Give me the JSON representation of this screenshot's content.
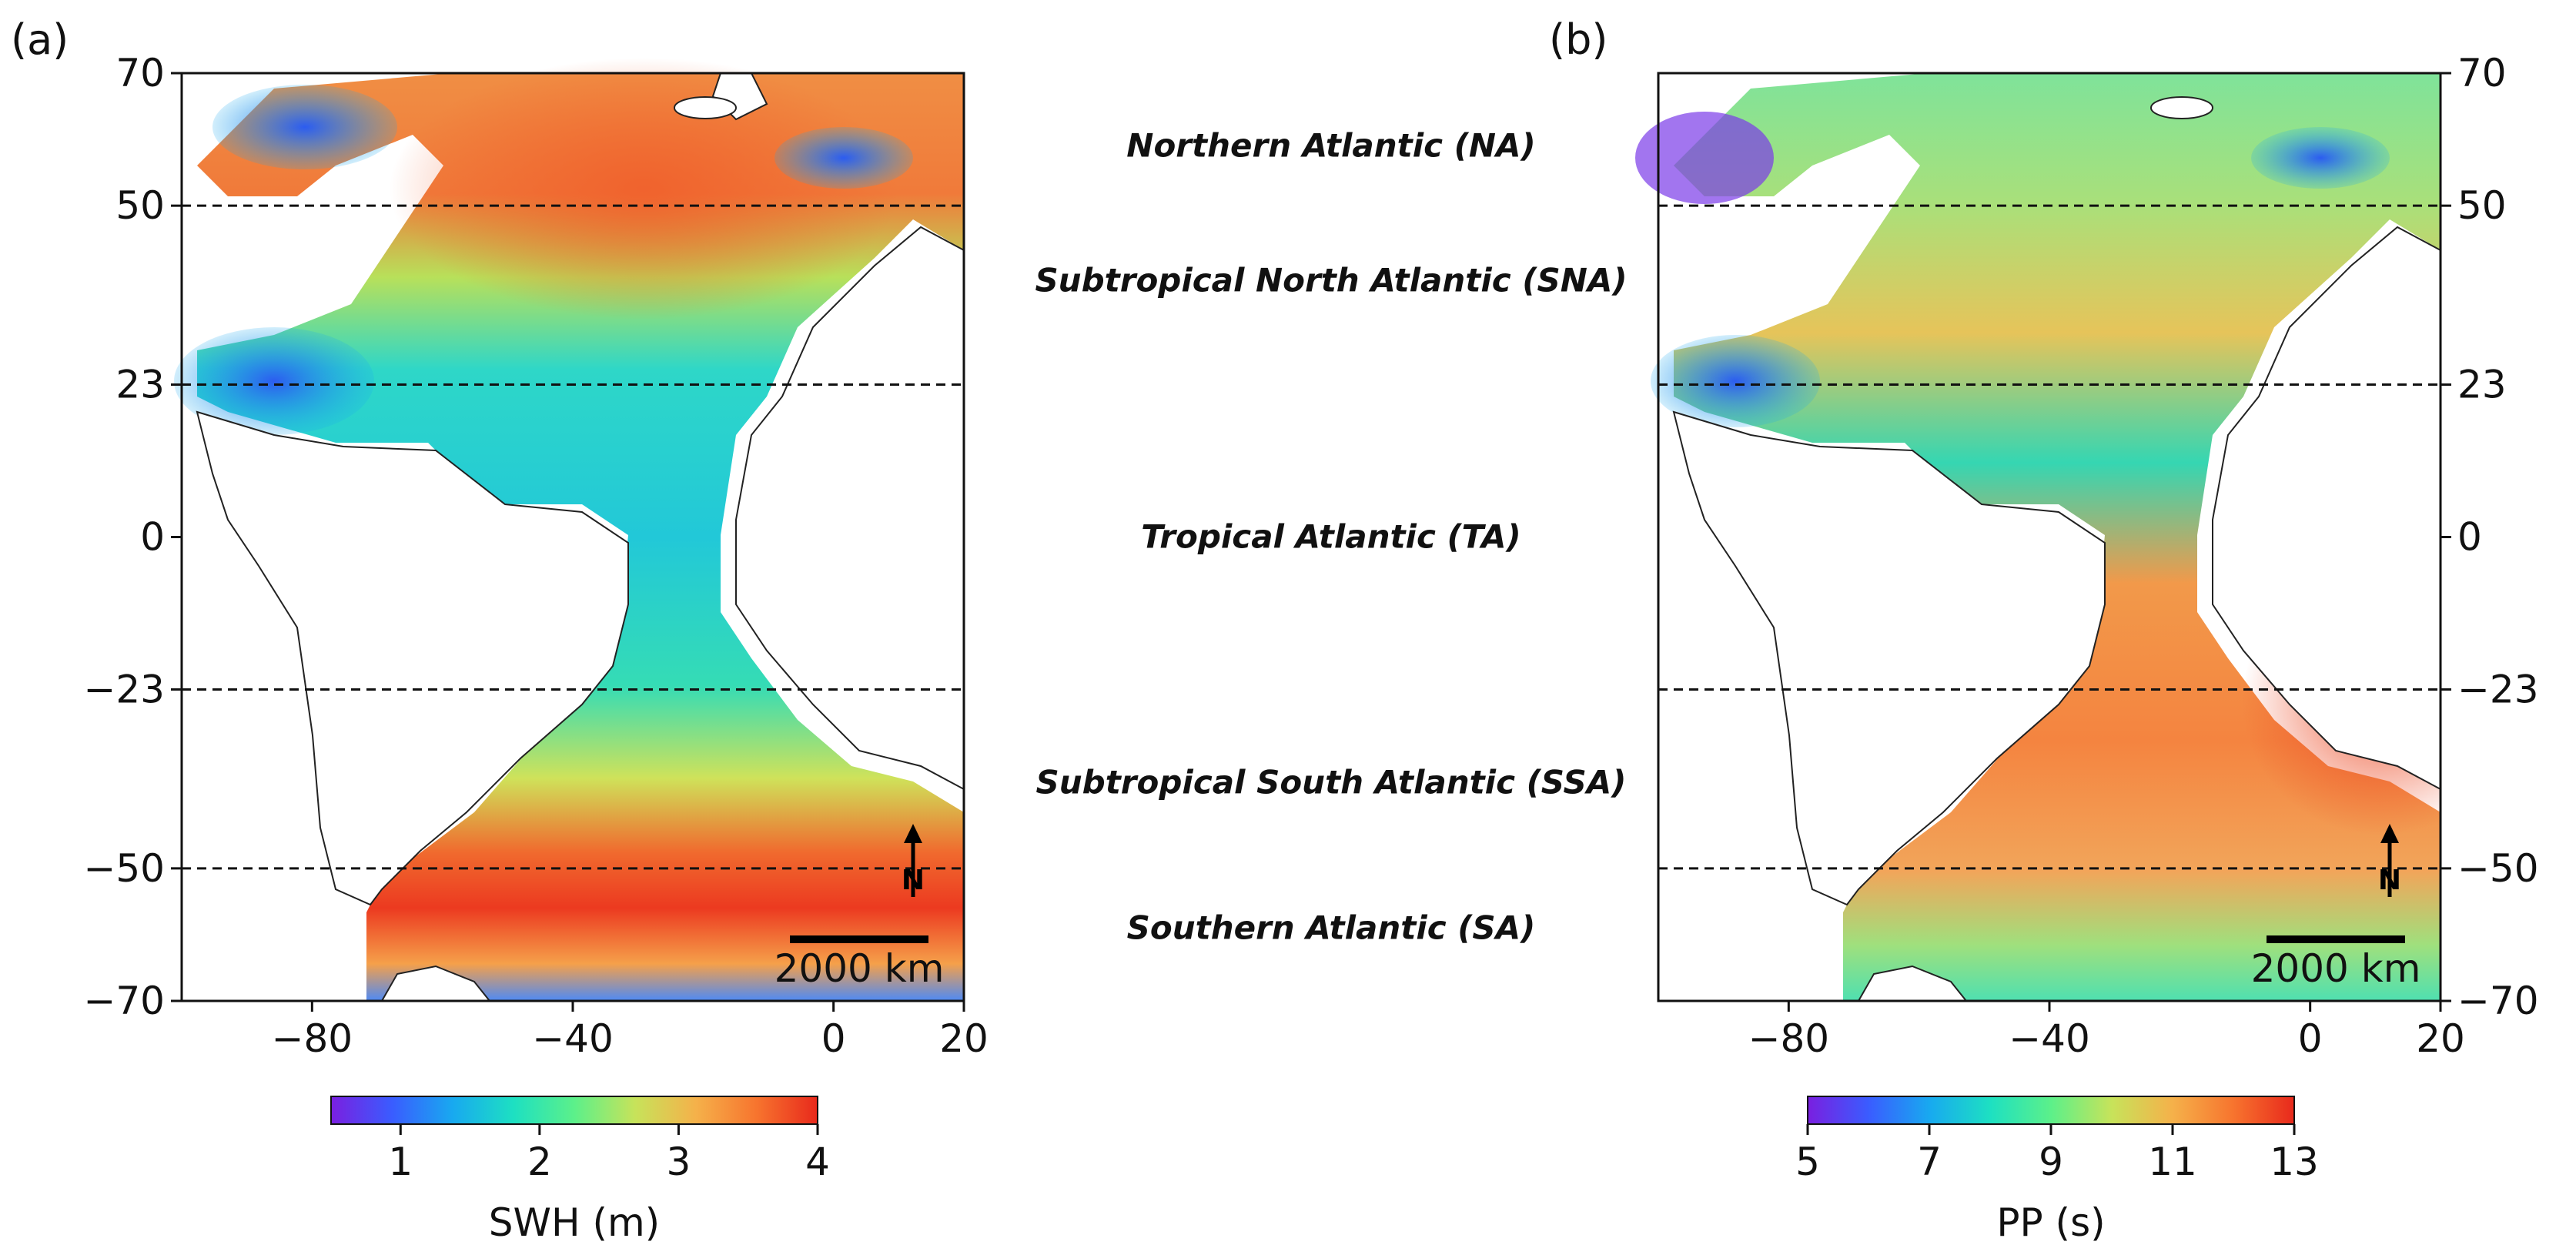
{
  "panels": [
    {
      "label": "(a)",
      "variable": "SWH",
      "colorbar_label": "SWH (m)",
      "colorbar_ticks": [
        "1",
        "2",
        "3",
        "4"
      ],
      "colorbar_range": [
        0.5,
        4
      ],
      "scale_bar": "2000 km",
      "north_arrow": "N"
    },
    {
      "label": "(b)",
      "variable": "PP",
      "colorbar_label": "PP (s)",
      "colorbar_ticks": [
        "5",
        "7",
        "9",
        "11",
        "13"
      ],
      "colorbar_range": [
        5,
        13
      ],
      "scale_bar": "2000 km",
      "north_arrow": "N"
    }
  ],
  "axes": {
    "lat_ticks": [
      70,
      50,
      23,
      0,
      -23,
      -50,
      -70
    ],
    "lat_tick_labels": [
      "70",
      "50",
      "23",
      "0",
      "−23",
      "−50",
      "−70"
    ],
    "lon_ticks": [
      -80,
      -40,
      0,
      20
    ],
    "lon_tick_labels": [
      "−80",
      "−40",
      "0",
      "20"
    ],
    "lat_range": [
      -70,
      70
    ],
    "lon_range": [
      -100,
      20
    ],
    "boundary_lats": [
      50,
      23,
      -23,
      -50
    ]
  },
  "regions": [
    {
      "name": "Northern Atlantic (NA)"
    },
    {
      "name": "Subtropical North Atlantic (SNA)"
    },
    {
      "name": "Tropical Atlantic (TA)"
    },
    {
      "name": "Subtropical South Atlantic (SSA)"
    },
    {
      "name": "Southern Atlantic (SA)"
    }
  ],
  "colormap": [
    "#7a1fe0",
    "#3a5cff",
    "#18a9f0",
    "#1de0c2",
    "#5cf08a",
    "#c7e35a",
    "#f5b14a",
    "#f7742e",
    "#e8291c"
  ],
  "colors": {
    "land_outline": "#222222",
    "boundary_line": "#111111"
  }
}
